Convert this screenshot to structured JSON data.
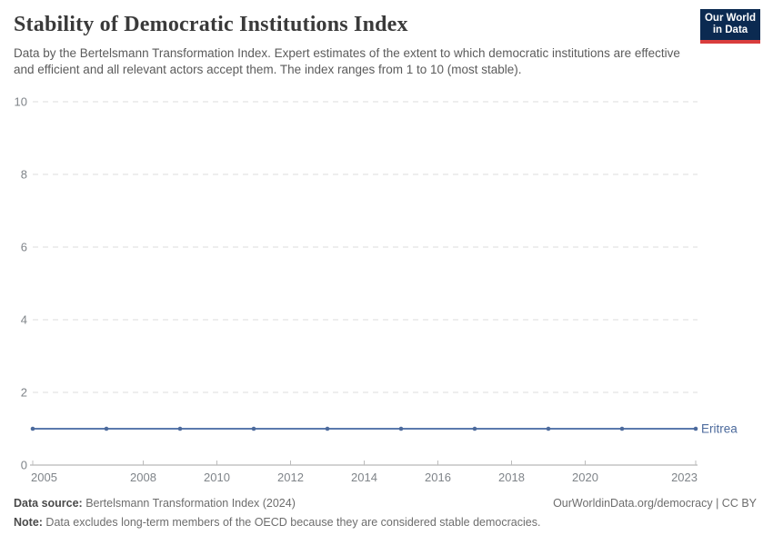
{
  "header": {
    "title": "Stability of Democratic Institutions Index",
    "subtitle": "Data by the Bertelsmann Transformation Index. Expert estimates of the extent to which democratic institutions are effective and efficient and all relevant actors accept them. The index ranges from 1 to 10 (most stable).",
    "logo": {
      "line1": "Our World",
      "line2": "in Data",
      "bg_color": "#0b2a51",
      "stripe_color": "#d93d3d"
    }
  },
  "chart_data": {
    "type": "line",
    "title": "Stability of Democratic Institutions Index",
    "x": [
      2005,
      2007,
      2009,
      2011,
      2013,
      2015,
      2017,
      2019,
      2021,
      2023
    ],
    "series": [
      {
        "name": "Eritrea",
        "values": [
          1,
          1,
          1,
          1,
          1,
          1,
          1,
          1,
          1,
          1
        ],
        "color": "#4c6a9c",
        "line_color": "#5b7aad"
      }
    ],
    "xlim": [
      2005,
      2023
    ],
    "ylim": [
      0,
      10
    ],
    "yticks": [
      0,
      2,
      4,
      6,
      8,
      10
    ],
    "xticks": [
      2005,
      2008,
      2010,
      2012,
      2014,
      2016,
      2018,
      2020,
      2023
    ],
    "grid": "horizontal dashed",
    "legend_position": "label at end of line"
  },
  "footer": {
    "datasource_label": "Data source:",
    "datasource_value": " Bertelsmann Transformation Index (2024)",
    "rights": "OurWorldinData.org/democracy | CC BY",
    "note_label": "Note:",
    "note_value": " Data excludes long-term members of the OECD because they are considered stable democracies."
  }
}
